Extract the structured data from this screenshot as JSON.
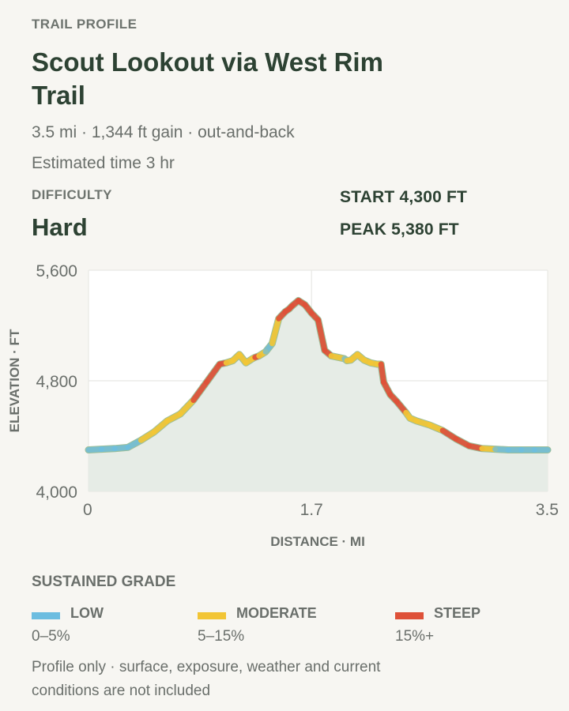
{
  "header": {
    "eyebrow": "TRAIL PROFILE",
    "title": "Scout Lookout via West Rim Trail",
    "summary": "3.5 mi · 1,344 ft gain · out-and-back",
    "time": "Estimated time 3 hr"
  },
  "difficulty": {
    "label": "DIFFICULTY",
    "value": "Hard"
  },
  "stats": {
    "start_label": "START",
    "start_value": "4,300 FT",
    "peak_label": "PEAK",
    "peak_value": "5,380 FT"
  },
  "colors": {
    "low": "#6cbde0",
    "moderate": "#f2c535",
    "steep": "#de5138",
    "area_fill": "#e6ece6",
    "trail_base": "#9dbf9a"
  },
  "chart_data": {
    "type": "area",
    "xlabel": "DISTANCE · MI",
    "ylabel": "ELEVATION · FT",
    "xlim": [
      0,
      3.5
    ],
    "ylim": [
      4000,
      5600
    ],
    "x_ticks": [
      0,
      1.7,
      3.5
    ],
    "x_tick_labels": [
      "0",
      "1.7",
      "3.5"
    ],
    "y_ticks": [
      4000,
      4800,
      5600
    ],
    "y_tick_labels": [
      "4,000",
      "4,800",
      "5,600"
    ],
    "grid": true,
    "x": [
      0,
      0.1,
      0.2,
      0.3,
      0.4,
      0.5,
      0.6,
      0.7,
      0.8,
      0.9,
      1.0,
      1.05,
      1.1,
      1.15,
      1.2,
      1.25,
      1.27,
      1.3,
      1.35,
      1.4,
      1.45,
      1.5,
      1.53,
      1.55,
      1.6,
      1.65,
      1.7,
      1.75,
      1.8,
      1.85,
      1.95,
      1.97,
      2.0,
      2.05,
      2.1,
      2.15,
      2.2,
      2.23,
      2.25,
      2.3,
      2.35,
      2.42,
      2.45,
      2.5,
      2.6,
      2.7,
      2.8,
      2.9,
      3.0,
      3.1,
      3.2,
      3.3,
      3.4,
      3.5
    ],
    "y": [
      4300,
      4305,
      4310,
      4318,
      4370,
      4430,
      4510,
      4560,
      4660,
      4790,
      4920,
      4930,
      4945,
      4990,
      4930,
      4960,
      4970,
      4980,
      5010,
      5070,
      5250,
      5300,
      5320,
      5340,
      5380,
      5350,
      5290,
      5240,
      5020,
      4980,
      4960,
      4945,
      4950,
      4990,
      4950,
      4930,
      4920,
      4920,
      4790,
      4700,
      4650,
      4570,
      4530,
      4510,
      4480,
      4440,
      4380,
      4330,
      4310,
      4305,
      4300,
      4300,
      4300,
      4300
    ],
    "grade": [
      "low",
      "low",
      "low",
      "low",
      "moderate",
      "moderate",
      "moderate",
      "moderate",
      "steep",
      "steep",
      "steep",
      "moderate",
      "moderate",
      "moderate",
      "moderate",
      "moderate",
      "steep",
      "moderate",
      "low",
      "moderate",
      "steep",
      "steep",
      "steep",
      "steep",
      "steep",
      "steep",
      "steep",
      "steep",
      "steep",
      "moderate",
      "low",
      "moderate",
      "moderate",
      "moderate",
      "moderate",
      "moderate",
      "moderate",
      "steep",
      "steep",
      "steep",
      "steep",
      "moderate",
      "moderate",
      "moderate",
      "moderate",
      "steep",
      "steep",
      "steep",
      "moderate",
      "low",
      "low",
      "low",
      "low"
    ]
  },
  "legend": {
    "title": "SUSTAINED GRADE",
    "items": [
      {
        "key": "low",
        "label": "LOW",
        "range": "0–5%"
      },
      {
        "key": "moderate",
        "label": "MODERATE",
        "range": "5–15%"
      },
      {
        "key": "steep",
        "label": "STEEP",
        "range": "15%+"
      }
    ]
  },
  "footnote": "Profile only · surface, exposure, weather and current conditions are not included"
}
